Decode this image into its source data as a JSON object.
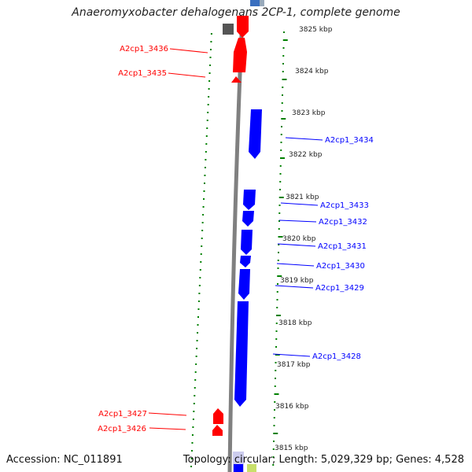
{
  "title": "Anaeromyxobacter dehalogenans 2CP-1, complete genome",
  "footer": {
    "accession": "Accession: NC_011891",
    "topology": "Topology: circular; Length: 5,029,329 bp; Genes: 4,528"
  },
  "colors": {
    "forward_gene": "#ff0000",
    "reverse_gene": "#0000ff",
    "backbone": "#808080",
    "tick": "#008000",
    "other_feature": "#555555"
  },
  "scale": {
    "unit": "kbp",
    "labels": [
      "3825 kbp",
      "3824 kbp",
      "3823 kbp",
      "3822 kbp",
      "3821 kbp",
      "3820 kbp",
      "3819 kbp",
      "3818 kbp",
      "3817 kbp",
      "3816 kbp",
      "3815 kbp"
    ]
  },
  "genes": [
    {
      "name": "A2cp1_3436",
      "strand": "forward"
    },
    {
      "name": "A2cp1_3435",
      "strand": "forward"
    },
    {
      "name": "A2cp1_3434",
      "strand": "reverse"
    },
    {
      "name": "A2cp1_3433",
      "strand": "reverse"
    },
    {
      "name": "A2cp1_3432",
      "strand": "reverse"
    },
    {
      "name": "A2cp1_3431",
      "strand": "reverse"
    },
    {
      "name": "A2cp1_3430",
      "strand": "reverse"
    },
    {
      "name": "A2cp1_3429",
      "strand": "reverse"
    },
    {
      "name": "A2cp1_3428",
      "strand": "reverse"
    },
    {
      "name": "A2cp1_3427",
      "strand": "forward"
    },
    {
      "name": "A2cp1_3426",
      "strand": "forward"
    }
  ]
}
